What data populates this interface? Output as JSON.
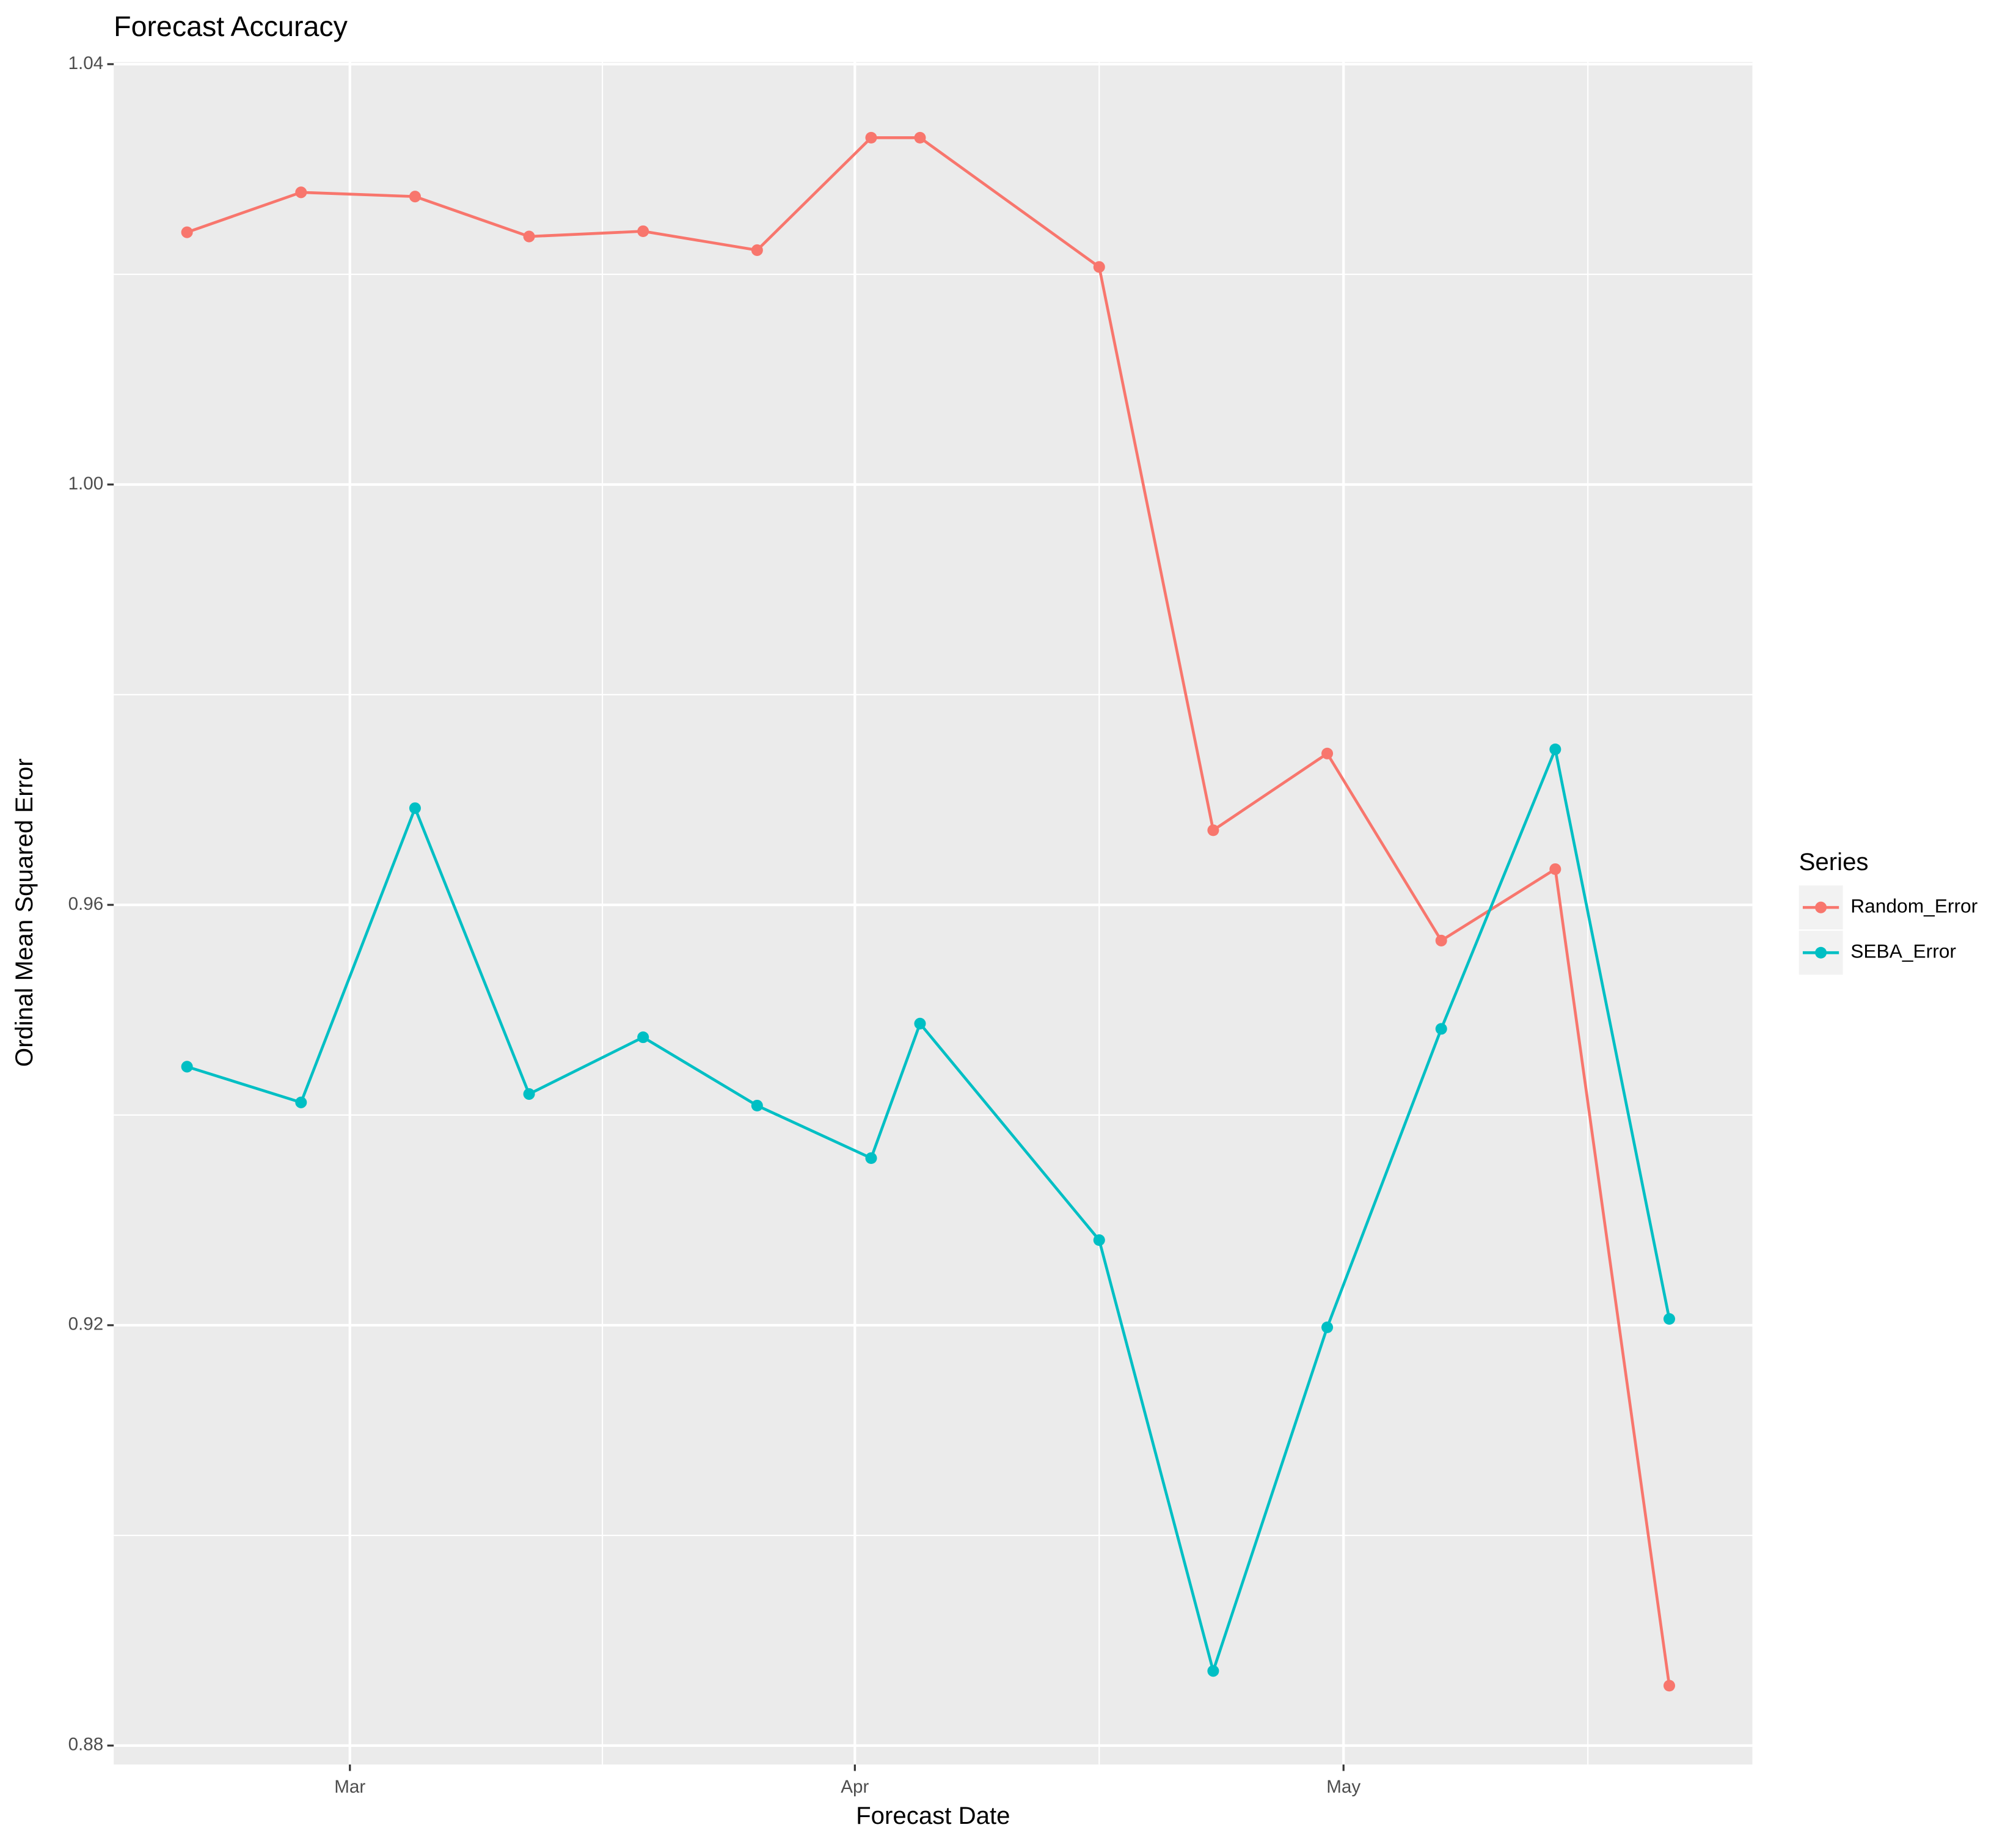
{
  "chart_data": {
    "type": "line",
    "title": "Forecast Accuracy",
    "x_label": "Forecast Date",
    "y_label": "Ordinal Mean Squared Error",
    "legend_title": "Series",
    "legend": "right",
    "grid": true,
    "x": [
      -10,
      -3,
      4,
      11,
      18,
      25,
      32,
      35,
      46,
      53,
      60,
      67,
      74,
      81
    ],
    "xlim": [
      -14.5,
      86.1
    ],
    "xticks": [
      {
        "value": 0,
        "label": "Mar"
      },
      {
        "value": 31,
        "label": "Apr"
      },
      {
        "value": 61,
        "label": "May"
      }
    ],
    "ylim": [
      0.8782,
      1.0402
    ],
    "yticks": [
      {
        "value": 0.88,
        "label": "0.88"
      },
      {
        "value": 0.92,
        "label": "0.92"
      },
      {
        "value": 0.96,
        "label": "0.96"
      },
      {
        "value": 1.0,
        "label": "1.00"
      },
      {
        "value": 1.04,
        "label": "1.04"
      }
    ],
    "series": [
      {
        "name": "Random_Error",
        "color": "#f8766d",
        "values": [
          1.024,
          1.0278,
          1.0274,
          1.0236,
          1.0241,
          1.0223,
          1.033,
          1.033,
          1.0207,
          0.9671,
          0.9744,
          0.9566,
          0.9634,
          0.8857
        ]
      },
      {
        "name": "SEBA_Error",
        "color": "#00bfc4",
        "values": [
          0.9446,
          0.9412,
          0.9692,
          0.942,
          0.9474,
          0.9409,
          0.9359,
          0.9487,
          0.9281,
          0.8871,
          0.9198,
          0.9482,
          0.9748,
          0.9206
        ]
      }
    ]
  }
}
